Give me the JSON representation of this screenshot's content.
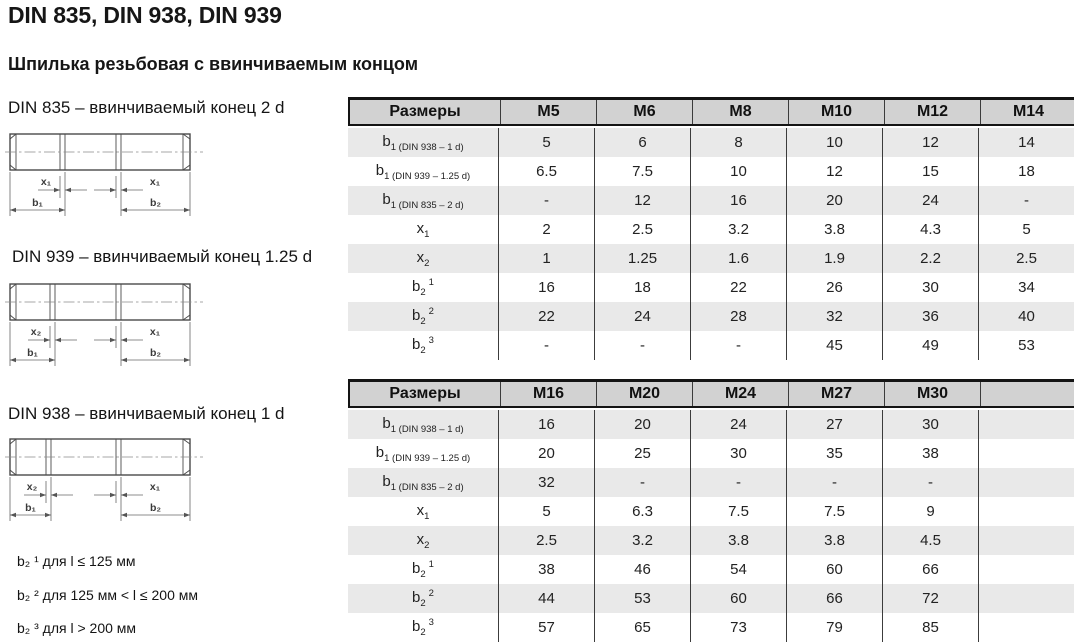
{
  "page": {
    "title": "DIN 835, DIN 938, DIN 939",
    "subtitle": "Шпилька резьбовая с ввинчиваемым концом"
  },
  "drawings": [
    {
      "caption": "DIN 835 – ввинчиваемый конец 2 d",
      "x_left": "x₁",
      "x_right": "x₁",
      "b_left": "b₁",
      "b_right": "b₂"
    },
    {
      "caption": "DIN 939 – ввинчиваемый конец 1.25 d",
      "x_left": "x₂",
      "x_right": "x₁",
      "b_left": "b₁",
      "b_right": "b₂"
    },
    {
      "caption": "DIN 938 – ввинчиваемый конец 1 d",
      "x_left": "x₂",
      "x_right": "x₁",
      "b_left": "b₁",
      "b_right": "b₂"
    }
  ],
  "footnotes": [
    "b₂ ¹ для l ≤ 125 мм",
    "b₂ ² для 125 мм < l ≤ 200 мм",
    "b₂ ³ для l > 200 мм"
  ],
  "tables": [
    {
      "header": {
        "label": "Размеры",
        "columns": [
          "M5",
          "M6",
          "M8",
          "M10",
          "M12",
          "M14"
        ]
      },
      "rows": [
        {
          "label": {
            "base": "b",
            "sub": "1 (DIN 938 – 1 d)",
            "sup": ""
          },
          "values": [
            "5",
            "6",
            "8",
            "10",
            "12",
            "14"
          ]
        },
        {
          "label": {
            "base": "b",
            "sub": "1 (DIN 939 – 1.25 d)",
            "sup": ""
          },
          "values": [
            "6.5",
            "7.5",
            "10",
            "12",
            "15",
            "18"
          ]
        },
        {
          "label": {
            "base": "b",
            "sub": "1 (DIN 835 – 2 d)",
            "sup": ""
          },
          "values": [
            "-",
            "12",
            "16",
            "20",
            "24",
            "-"
          ]
        },
        {
          "label": {
            "base": "x",
            "sub": "1",
            "sup": ""
          },
          "values": [
            "2",
            "2.5",
            "3.2",
            "3.8",
            "4.3",
            "5"
          ]
        },
        {
          "label": {
            "base": "x",
            "sub": "2",
            "sup": ""
          },
          "values": [
            "1",
            "1.25",
            "1.6",
            "1.9",
            "2.2",
            "2.5"
          ]
        },
        {
          "label": {
            "base": "b",
            "sub": "2",
            "sup": "1"
          },
          "values": [
            "16",
            "18",
            "22",
            "26",
            "30",
            "34"
          ]
        },
        {
          "label": {
            "base": "b",
            "sub": "2",
            "sup": "2"
          },
          "values": [
            "22",
            "24",
            "28",
            "32",
            "36",
            "40"
          ]
        },
        {
          "label": {
            "base": "b",
            "sub": "2",
            "sup": "3"
          },
          "values": [
            "-",
            "-",
            "-",
            "45",
            "49",
            "53"
          ]
        }
      ]
    },
    {
      "header": {
        "label": "Размеры",
        "columns": [
          "M16",
          "M20",
          "M24",
          "M27",
          "M30",
          ""
        ]
      },
      "rows": [
        {
          "label": {
            "base": "b",
            "sub": "1 (DIN 938 – 1 d)",
            "sup": ""
          },
          "values": [
            "16",
            "20",
            "24",
            "27",
            "30",
            ""
          ]
        },
        {
          "label": {
            "base": "b",
            "sub": "1 (DIN 939 – 1.25 d)",
            "sup": ""
          },
          "values": [
            "20",
            "25",
            "30",
            "35",
            "38",
            ""
          ]
        },
        {
          "label": {
            "base": "b",
            "sub": "1 (DIN 835 – 2 d)",
            "sup": ""
          },
          "values": [
            "32",
            "-",
            "-",
            "-",
            "-",
            ""
          ]
        },
        {
          "label": {
            "base": "x",
            "sub": "1",
            "sup": ""
          },
          "values": [
            "5",
            "6.3",
            "7.5",
            "7.5",
            "9",
            ""
          ]
        },
        {
          "label": {
            "base": "x",
            "sub": "2",
            "sup": ""
          },
          "values": [
            "2.5",
            "3.2",
            "3.8",
            "3.8",
            "4.5",
            ""
          ]
        },
        {
          "label": {
            "base": "b",
            "sub": "2",
            "sup": "1"
          },
          "values": [
            "38",
            "46",
            "54",
            "60",
            "66",
            ""
          ]
        },
        {
          "label": {
            "base": "b",
            "sub": "2",
            "sup": "2"
          },
          "values": [
            "44",
            "53",
            "60",
            "66",
            "72",
            ""
          ]
        },
        {
          "label": {
            "base": "b",
            "sub": "2",
            "sup": "3"
          },
          "values": [
            "57",
            "65",
            "73",
            "79",
            "85",
            ""
          ]
        }
      ]
    }
  ],
  "colors": {
    "header_bg": "#d2d2d2",
    "stripe_bg": "#e9e9e9",
    "table_border": "#141414",
    "grid_line": "#3c3c3c",
    "drawing_line": "#4a4a4a"
  }
}
